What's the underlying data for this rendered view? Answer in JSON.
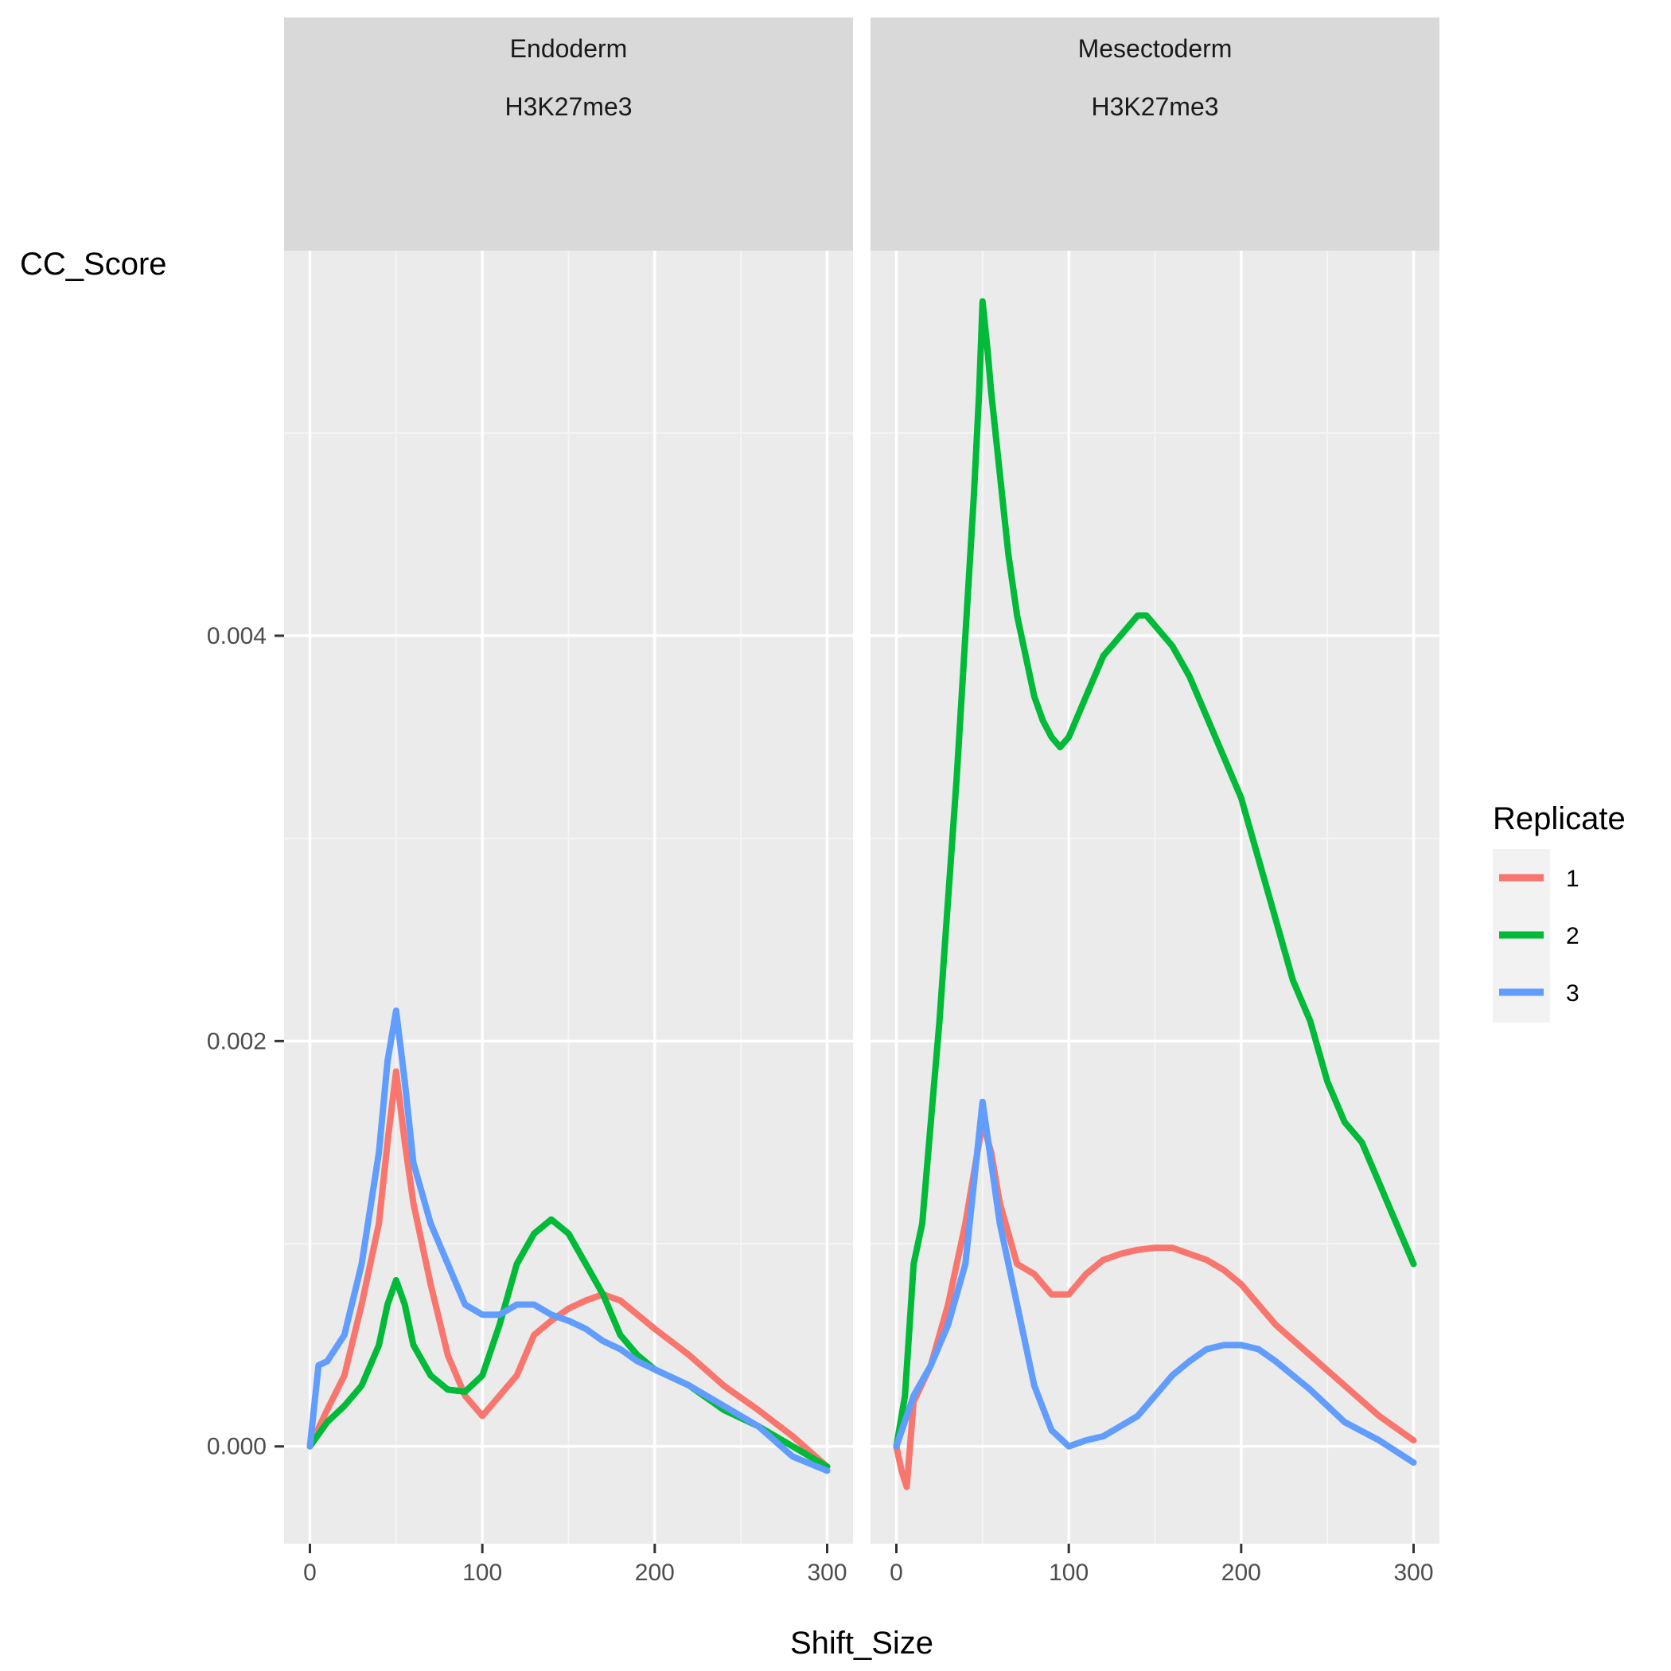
{
  "chart_data": {
    "type": "line",
    "xlabel": "Shift_Size",
    "ylabel": "CC_Score",
    "xlim": [
      -15,
      315
    ],
    "ylim": [
      -0.00048,
      0.0059
    ],
    "x_ticks": [
      0,
      100,
      200,
      300
    ],
    "x_tick_labels": [
      "0",
      "100",
      "200",
      "300"
    ],
    "y_ticks": [
      0.0,
      0.002,
      0.004
    ],
    "y_tick_labels": [
      "0.000",
      "0.002",
      "0.004"
    ],
    "legend": {
      "title": "Replicate",
      "entries": [
        {
          "label": "1",
          "color": "#F8766D"
        },
        {
          "label": "2",
          "color": "#00BA38"
        },
        {
          "label": "3",
          "color": "#619CFF"
        }
      ],
      "position": "right"
    },
    "panels": [
      {
        "strip": [
          "Endoderm",
          "H3K27me3"
        ],
        "series": [
          {
            "name": "1",
            "x": [
              0,
              10,
              20,
              30,
              40,
              45,
              50,
              55,
              60,
              70,
              80,
              90,
              100,
              110,
              120,
              130,
              140,
              150,
              160,
              170,
              180,
              190,
              200,
              220,
              240,
              260,
              280,
              300
            ],
            "values": [
              0.0,
              0.00018,
              0.00035,
              0.0007,
              0.0011,
              0.0015,
              0.00185,
              0.0015,
              0.0012,
              0.0008,
              0.00045,
              0.00025,
              0.00015,
              0.00025,
              0.00035,
              0.00055,
              0.00062,
              0.00068,
              0.00072,
              0.00075,
              0.00072,
              0.00065,
              0.00058,
              0.00045,
              0.0003,
              0.00018,
              5e-05,
              -0.0001
            ]
          },
          {
            "name": "2",
            "x": [
              0,
              10,
              20,
              30,
              40,
              45,
              50,
              55,
              60,
              70,
              80,
              90,
              100,
              110,
              120,
              130,
              140,
              150,
              160,
              170,
              180,
              190,
              200,
              220,
              240,
              260,
              280,
              300
            ],
            "values": [
              0.0,
              0.00012,
              0.0002,
              0.0003,
              0.0005,
              0.0007,
              0.00082,
              0.0007,
              0.0005,
              0.00035,
              0.00028,
              0.00027,
              0.00035,
              0.0006,
              0.0009,
              0.00105,
              0.00112,
              0.00105,
              0.0009,
              0.00075,
              0.00055,
              0.00045,
              0.00038,
              0.0003,
              0.00018,
              0.0001,
              0.0,
              -0.0001
            ]
          },
          {
            "name": "3",
            "x": [
              0,
              5,
              10,
              20,
              30,
              40,
              45,
              50,
              55,
              60,
              70,
              80,
              90,
              100,
              110,
              120,
              130,
              140,
              150,
              160,
              170,
              180,
              190,
              200,
              220,
              240,
              260,
              280,
              300
            ],
            "values": [
              0.0,
              0.0004,
              0.00042,
              0.00055,
              0.0009,
              0.00145,
              0.0019,
              0.00215,
              0.0018,
              0.0014,
              0.0011,
              0.0009,
              0.0007,
              0.00065,
              0.00065,
              0.0007,
              0.0007,
              0.00065,
              0.00062,
              0.00058,
              0.00052,
              0.00048,
              0.00042,
              0.00038,
              0.0003,
              0.0002,
              0.0001,
              -5e-05,
              -0.00012
            ]
          }
        ]
      },
      {
        "strip": [
          "Mesectoderm",
          "H3K27me3"
        ],
        "series": [
          {
            "name": "1",
            "x": [
              0,
              3,
              6,
              10,
              20,
              30,
              40,
              45,
              50,
              55,
              60,
              70,
              80,
              90,
              100,
              110,
              120,
              130,
              140,
              150,
              160,
              170,
              180,
              190,
              200,
              210,
              220,
              240,
              260,
              280,
              300
            ],
            "values": [
              0.0,
              -0.00012,
              -0.0002,
              0.00022,
              0.0004,
              0.0007,
              0.0011,
              0.00135,
              0.0016,
              0.00145,
              0.0012,
              0.0009,
              0.00085,
              0.00075,
              0.00075,
              0.00085,
              0.00092,
              0.00095,
              0.00097,
              0.00098,
              0.00098,
              0.00095,
              0.00092,
              0.00087,
              0.0008,
              0.0007,
              0.0006,
              0.00045,
              0.0003,
              0.00015,
              3e-05
            ]
          },
          {
            "name": "2",
            "x": [
              0,
              5,
              10,
              15,
              20,
              25,
              30,
              35,
              40,
              45,
              48,
              50,
              53,
              55,
              60,
              65,
              70,
              75,
              80,
              85,
              90,
              95,
              100,
              110,
              120,
              130,
              140,
              145,
              150,
              160,
              170,
              180,
              190,
              200,
              210,
              220,
              230,
              240,
              250,
              260,
              270,
              280,
              290,
              300
            ],
            "values": [
              0.0,
              0.00025,
              0.0009,
              0.0011,
              0.0016,
              0.0021,
              0.0027,
              0.0033,
              0.004,
              0.0047,
              0.0052,
              0.00565,
              0.0054,
              0.0052,
              0.0048,
              0.0044,
              0.0041,
              0.0039,
              0.0037,
              0.00358,
              0.0035,
              0.00345,
              0.0035,
              0.0037,
              0.0039,
              0.004,
              0.0041,
              0.0041,
              0.00405,
              0.00395,
              0.0038,
              0.0036,
              0.0034,
              0.0032,
              0.0029,
              0.0026,
              0.0023,
              0.0021,
              0.0018,
              0.0016,
              0.0015,
              0.0013,
              0.0011,
              0.0009
            ]
          },
          {
            "name": "3",
            "x": [
              0,
              10,
              20,
              30,
              40,
              45,
              50,
              55,
              60,
              70,
              80,
              90,
              100,
              110,
              120,
              130,
              140,
              150,
              160,
              170,
              180,
              190,
              200,
              210,
              220,
              230,
              240,
              250,
              260,
              280,
              300
            ],
            "values": [
              0.0,
              0.00025,
              0.0004,
              0.0006,
              0.0009,
              0.0013,
              0.0017,
              0.0014,
              0.0011,
              0.0007,
              0.0003,
              8e-05,
              0.0,
              3e-05,
              5e-05,
              0.0001,
              0.00015,
              0.00025,
              0.00035,
              0.00042,
              0.00048,
              0.0005,
              0.0005,
              0.00048,
              0.00042,
              0.00035,
              0.00028,
              0.0002,
              0.00012,
              3e-05,
              -8e-05
            ]
          }
        ]
      }
    ]
  }
}
